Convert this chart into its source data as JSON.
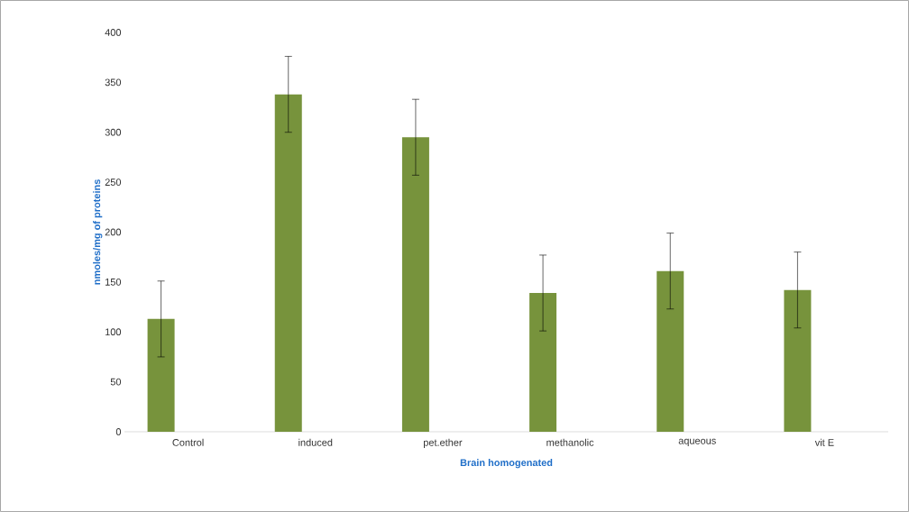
{
  "chart_data": {
    "type": "bar",
    "xlabel": "Brain homogenated",
    "ylabel": "nmoles/mg of proteins",
    "categories": [
      "Control",
      "induced",
      "pet.ether",
      "methanolic",
      "aqueous",
      "vit E"
    ],
    "values": [
      113,
      338,
      295,
      139,
      161,
      142
    ],
    "errors": [
      38,
      38,
      38,
      38,
      38,
      38
    ],
    "color": "#77933c",
    "ylim": [
      0,
      400
    ],
    "yticks": [
      0,
      50,
      100,
      150,
      200,
      250,
      300,
      350,
      400
    ]
  }
}
